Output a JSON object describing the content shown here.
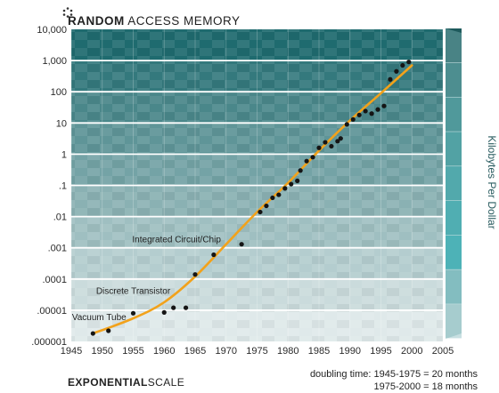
{
  "chart_data": {
    "type": "scatter",
    "title_bold": "RANDOM",
    "title_rest": " ACCESS MEMORY",
    "ylabel": "Kilobytes Per Dollar",
    "yscale": "log",
    "xlim": [
      1945,
      2005
    ],
    "ylim": [
      1e-06,
      10000
    ],
    "x_ticks": [
      "1945",
      "1950",
      "1955",
      "1960",
      "1965",
      "1970",
      "1975",
      "1980",
      "1985",
      "1990",
      "1995",
      "2000",
      "2005"
    ],
    "y_ticks": [
      "10,000",
      "1,000",
      "100",
      "10",
      "1",
      ".1",
      ".01",
      ".001",
      ".0001",
      ".00001",
      ".000001"
    ],
    "annotations": [
      {
        "text": "Vacuum Tube",
        "x": 1949.5,
        "y": 4.8e-06
      },
      {
        "text": "Discrete Transistor",
        "x": 1955,
        "y": 3.3e-05
      },
      {
        "text": "Integrated Circuit/Chip",
        "x": 1962,
        "y": 0.0015
      }
    ],
    "points": [
      {
        "x": 1948.5,
        "y": 1.8e-06
      },
      {
        "x": 1951,
        "y": 2.2e-06
      },
      {
        "x": 1955,
        "y": 8e-06
      },
      {
        "x": 1960,
        "y": 8.5e-06
      },
      {
        "x": 1961.5,
        "y": 1.2e-05
      },
      {
        "x": 1963.5,
        "y": 1.2e-05
      },
      {
        "x": 1965,
        "y": 0.00014
      },
      {
        "x": 1968,
        "y": 0.0006
      },
      {
        "x": 1972.5,
        "y": 0.0013
      },
      {
        "x": 1975.5,
        "y": 0.014
      },
      {
        "x": 1976.5,
        "y": 0.022
      },
      {
        "x": 1977.5,
        "y": 0.04
      },
      {
        "x": 1978.5,
        "y": 0.05
      },
      {
        "x": 1979.5,
        "y": 0.08
      },
      {
        "x": 1980.5,
        "y": 0.11
      },
      {
        "x": 1981.5,
        "y": 0.14
      },
      {
        "x": 1982,
        "y": 0.3
      },
      {
        "x": 1983,
        "y": 0.6
      },
      {
        "x": 1984,
        "y": 0.8
      },
      {
        "x": 1985,
        "y": 1.6
      },
      {
        "x": 1986,
        "y": 2.4
      },
      {
        "x": 1987,
        "y": 1.8
      },
      {
        "x": 1988,
        "y": 2.6
      },
      {
        "x": 1988.5,
        "y": 3.2
      },
      {
        "x": 1989.5,
        "y": 9
      },
      {
        "x": 1990.5,
        "y": 13
      },
      {
        "x": 1991.5,
        "y": 18
      },
      {
        "x": 1992.5,
        "y": 24
      },
      {
        "x": 1993.5,
        "y": 20
      },
      {
        "x": 1994.5,
        "y": 27
      },
      {
        "x": 1995.5,
        "y": 35
      },
      {
        "x": 1996.5,
        "y": 250
      },
      {
        "x": 1997.5,
        "y": 450
      },
      {
        "x": 1998.5,
        "y": 700
      },
      {
        "x": 1999.5,
        "y": 900
      }
    ],
    "trend": [
      {
        "x": 1948.5,
        "y": 1.8e-06
      },
      {
        "x": 1955,
        "y": 5.5e-06
      },
      {
        "x": 1960,
        "y": 1.8e-05
      },
      {
        "x": 1965,
        "y": 0.00012
      },
      {
        "x": 1970,
        "y": 0.0013
      },
      {
        "x": 1975,
        "y": 0.014
      },
      {
        "x": 1980,
        "y": 0.12
      },
      {
        "x": 1985,
        "y": 1.3
      },
      {
        "x": 1990,
        "y": 12
      },
      {
        "x": 1995,
        "y": 90
      },
      {
        "x": 2000,
        "y": 700
      }
    ],
    "colors": {
      "trend": "#f2a21b",
      "points": "#151515",
      "band_dark": "#1f6b6f",
      "band_light": "#dfe9ea"
    },
    "legend_swatches": [
      "#1e5a5c",
      "#256e70",
      "#2b8184",
      "#2f9294",
      "#2f9fa3",
      "#2aa8ad",
      "#25b0b6",
      "#88c3c6",
      "#c7dfe1"
    ]
  },
  "footer": {
    "scale_bold": "EXPONENTIAL",
    "scale_rest": "SCALE",
    "doubling_line1": "doubling time:  1945-1975 = 20 months",
    "doubling_line2": "1975-2000 = 18 months"
  }
}
